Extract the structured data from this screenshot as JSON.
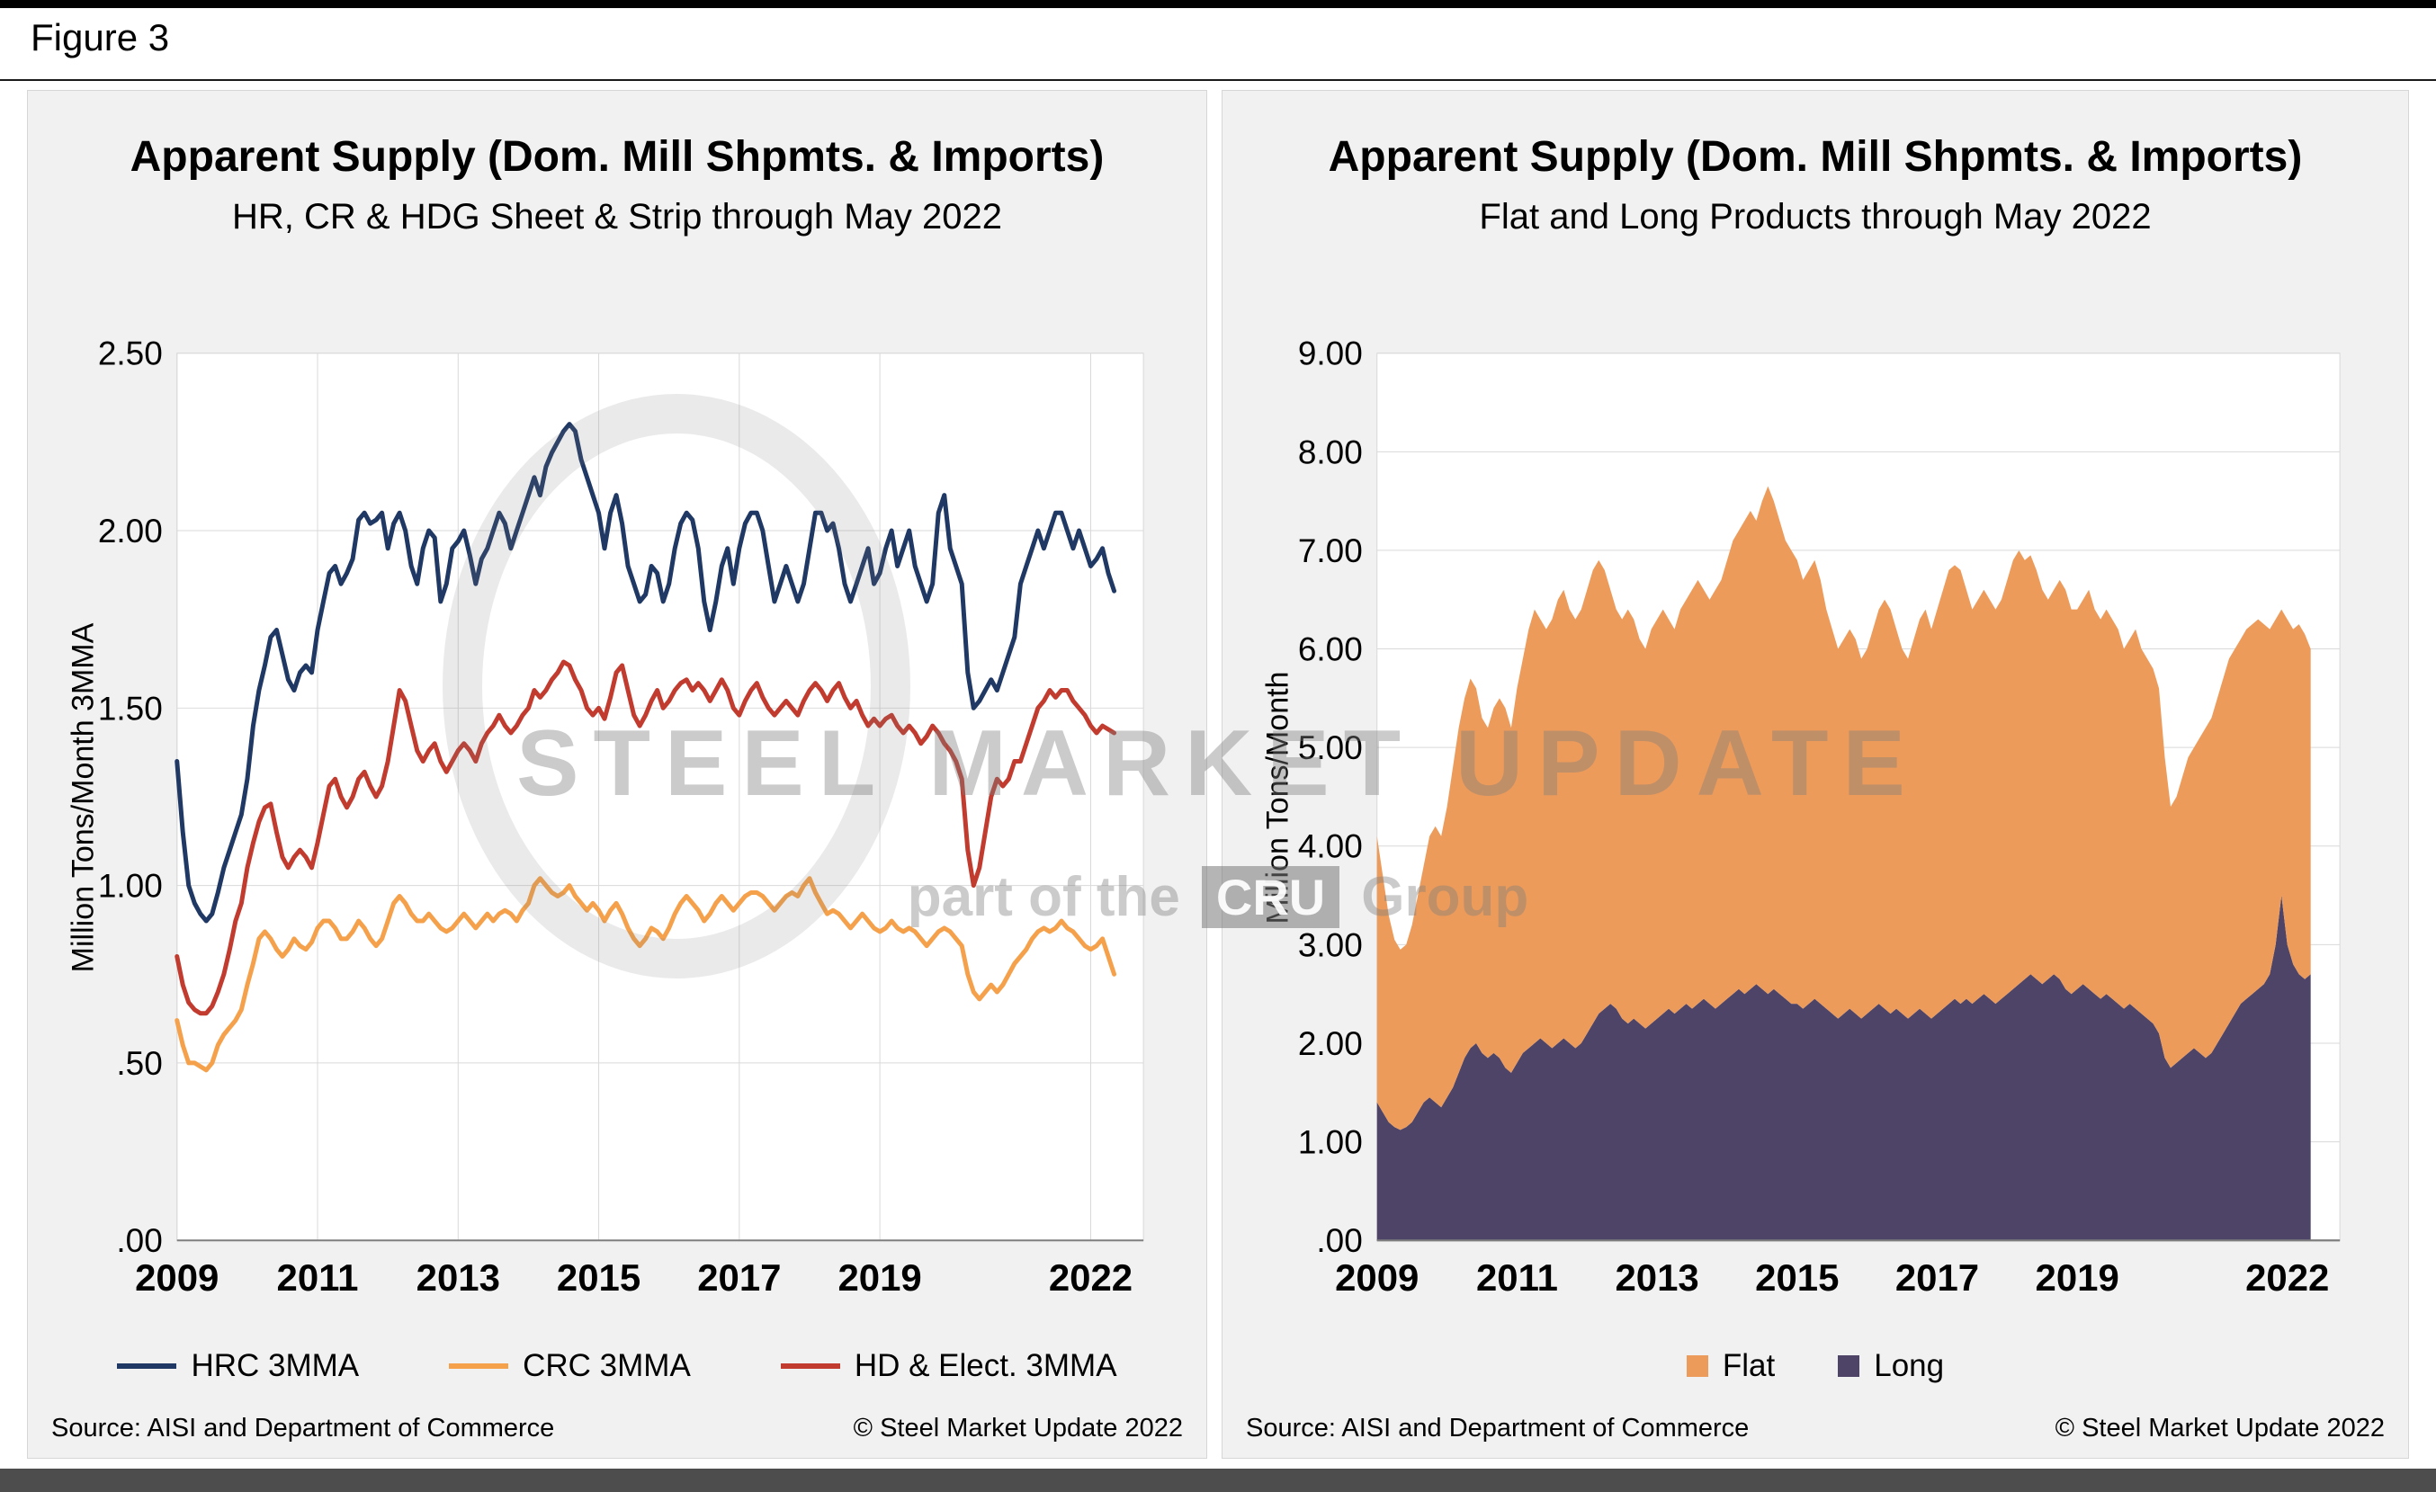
{
  "page": {
    "figure_label": "Figure 3"
  },
  "watermark": {
    "line1": "STEEL MARKET UPDATE",
    "line2_prefix": "part of the",
    "line2_logo": "CRU",
    "line2_suffix": "Group"
  },
  "chart_data": [
    {
      "type": "line",
      "title": "Apparent Supply (Dom. Mill Shpmts. & Imports)",
      "subtitle": "HR, CR & HDG Sheet & Strip through May 2022",
      "ylabel": "Million Tons/Month 3MMA",
      "source": "Source: AISI and Department of Commerce",
      "copyright": "© Steel Market Update 2022",
      "x_start_year": 2009,
      "x_step_years": 0.0833333,
      "x_end_label": "May 2022",
      "xlim": [
        2009,
        2022.75
      ],
      "ylim": [
        0,
        2.5
      ],
      "grid": "both",
      "legend_position": "bottom",
      "yticks": [
        {
          "v": 2.5,
          "label": "2.50"
        },
        {
          "v": 2.0,
          "label": "2.00"
        },
        {
          "v": 1.5,
          "label": "1.50"
        },
        {
          "v": 1.0,
          "label": "1.00"
        },
        {
          "v": 0.5,
          "label": ".50"
        },
        {
          "v": 0.0,
          "label": ".00"
        }
      ],
      "xticks": [
        {
          "v": 2009,
          "label": "2009"
        },
        {
          "v": 2011,
          "label": "2011"
        },
        {
          "v": 2013,
          "label": "2013"
        },
        {
          "v": 2015,
          "label": "2015"
        },
        {
          "v": 2017,
          "label": "2017"
        },
        {
          "v": 2019,
          "label": "2019"
        },
        {
          "v": 2022,
          "label": "2022"
        }
      ],
      "series": [
        {
          "name": "HRC 3MMA",
          "color": "#1F3864",
          "values": [
            1.35,
            1.15,
            1.0,
            0.95,
            0.92,
            0.9,
            0.92,
            0.98,
            1.05,
            1.1,
            1.15,
            1.2,
            1.3,
            1.45,
            1.55,
            1.62,
            1.7,
            1.72,
            1.65,
            1.58,
            1.55,
            1.6,
            1.62,
            1.6,
            1.72,
            1.8,
            1.88,
            1.9,
            1.85,
            1.88,
            1.92,
            2.03,
            2.05,
            2.02,
            2.03,
            2.05,
            1.95,
            2.02,
            2.05,
            2.0,
            1.9,
            1.85,
            1.95,
            2.0,
            1.98,
            1.8,
            1.85,
            1.95,
            1.97,
            2.0,
            1.93,
            1.85,
            1.92,
            1.95,
            2.0,
            2.05,
            2.02,
            1.95,
            2.0,
            2.05,
            2.1,
            2.15,
            2.1,
            2.18,
            2.22,
            2.25,
            2.28,
            2.3,
            2.28,
            2.2,
            2.15,
            2.1,
            2.05,
            1.95,
            2.05,
            2.1,
            2.02,
            1.9,
            1.85,
            1.8,
            1.82,
            1.9,
            1.88,
            1.8,
            1.85,
            1.95,
            2.02,
            2.05,
            2.03,
            1.95,
            1.8,
            1.72,
            1.8,
            1.9,
            1.95,
            1.85,
            1.95,
            2.02,
            2.05,
            2.05,
            2.0,
            1.9,
            1.8,
            1.85,
            1.9,
            1.85,
            1.8,
            1.85,
            1.95,
            2.05,
            2.05,
            2.0,
            2.02,
            1.95,
            1.85,
            1.8,
            1.85,
            1.9,
            1.95,
            1.85,
            1.88,
            1.95,
            2.0,
            1.9,
            1.95,
            2.0,
            1.9,
            1.85,
            1.8,
            1.85,
            2.05,
            2.1,
            1.95,
            1.9,
            1.85,
            1.6,
            1.5,
            1.52,
            1.55,
            1.58,
            1.55,
            1.6,
            1.65,
            1.7,
            1.85,
            1.9,
            1.95,
            2.0,
            1.95,
            2.0,
            2.05,
            2.05,
            2.0,
            1.95,
            2.0,
            1.95,
            1.9,
            1.92,
            1.95,
            1.88,
            1.83
          ]
        },
        {
          "name": "CRC 3MMA",
          "color": "#F5A14B",
          "values": [
            0.62,
            0.55,
            0.5,
            0.5,
            0.49,
            0.48,
            0.5,
            0.55,
            0.58,
            0.6,
            0.62,
            0.65,
            0.72,
            0.78,
            0.85,
            0.87,
            0.85,
            0.82,
            0.8,
            0.82,
            0.85,
            0.83,
            0.82,
            0.84,
            0.88,
            0.9,
            0.9,
            0.88,
            0.85,
            0.85,
            0.87,
            0.9,
            0.88,
            0.85,
            0.83,
            0.85,
            0.9,
            0.95,
            0.97,
            0.95,
            0.92,
            0.9,
            0.9,
            0.92,
            0.9,
            0.88,
            0.87,
            0.88,
            0.9,
            0.92,
            0.9,
            0.88,
            0.9,
            0.92,
            0.9,
            0.92,
            0.93,
            0.92,
            0.9,
            0.93,
            0.95,
            1.0,
            1.02,
            1.0,
            0.98,
            0.97,
            0.98,
            1.0,
            0.97,
            0.95,
            0.93,
            0.95,
            0.93,
            0.9,
            0.93,
            0.95,
            0.92,
            0.88,
            0.85,
            0.83,
            0.85,
            0.88,
            0.87,
            0.85,
            0.88,
            0.92,
            0.95,
            0.97,
            0.95,
            0.93,
            0.9,
            0.92,
            0.95,
            0.97,
            0.95,
            0.93,
            0.95,
            0.97,
            0.98,
            0.98,
            0.97,
            0.95,
            0.93,
            0.95,
            0.97,
            0.98,
            0.97,
            1.0,
            1.02,
            0.98,
            0.95,
            0.92,
            0.93,
            0.92,
            0.9,
            0.88,
            0.9,
            0.92,
            0.9,
            0.88,
            0.87,
            0.88,
            0.9,
            0.88,
            0.87,
            0.88,
            0.87,
            0.85,
            0.83,
            0.85,
            0.87,
            0.88,
            0.87,
            0.85,
            0.83,
            0.75,
            0.7,
            0.68,
            0.7,
            0.72,
            0.7,
            0.72,
            0.75,
            0.78,
            0.8,
            0.82,
            0.85,
            0.87,
            0.88,
            0.87,
            0.88,
            0.9,
            0.88,
            0.87,
            0.85,
            0.83,
            0.82,
            0.83,
            0.85,
            0.8,
            0.75
          ]
        },
        {
          "name": "HD & Elect. 3MMA",
          "color": "#C13B2F",
          "values": [
            0.8,
            0.72,
            0.67,
            0.65,
            0.64,
            0.64,
            0.66,
            0.7,
            0.75,
            0.82,
            0.9,
            0.95,
            1.05,
            1.12,
            1.18,
            1.22,
            1.23,
            1.15,
            1.08,
            1.05,
            1.08,
            1.1,
            1.08,
            1.05,
            1.12,
            1.2,
            1.28,
            1.3,
            1.25,
            1.22,
            1.25,
            1.3,
            1.32,
            1.28,
            1.25,
            1.28,
            1.35,
            1.45,
            1.55,
            1.52,
            1.45,
            1.38,
            1.35,
            1.38,
            1.4,
            1.35,
            1.32,
            1.35,
            1.38,
            1.4,
            1.38,
            1.35,
            1.4,
            1.43,
            1.45,
            1.48,
            1.45,
            1.43,
            1.45,
            1.48,
            1.5,
            1.55,
            1.53,
            1.55,
            1.58,
            1.6,
            1.63,
            1.62,
            1.58,
            1.55,
            1.5,
            1.48,
            1.5,
            1.47,
            1.53,
            1.6,
            1.62,
            1.55,
            1.48,
            1.45,
            1.48,
            1.52,
            1.55,
            1.5,
            1.52,
            1.55,
            1.57,
            1.58,
            1.55,
            1.57,
            1.55,
            1.52,
            1.55,
            1.58,
            1.55,
            1.5,
            1.48,
            1.52,
            1.55,
            1.57,
            1.53,
            1.5,
            1.48,
            1.5,
            1.52,
            1.5,
            1.48,
            1.52,
            1.55,
            1.57,
            1.55,
            1.52,
            1.55,
            1.57,
            1.53,
            1.5,
            1.52,
            1.48,
            1.45,
            1.47,
            1.45,
            1.47,
            1.48,
            1.45,
            1.43,
            1.45,
            1.43,
            1.4,
            1.42,
            1.45,
            1.43,
            1.4,
            1.38,
            1.35,
            1.3,
            1.1,
            1.0,
            1.05,
            1.15,
            1.25,
            1.3,
            1.28,
            1.3,
            1.35,
            1.35,
            1.4,
            1.45,
            1.5,
            1.52,
            1.55,
            1.53,
            1.55,
            1.55,
            1.52,
            1.5,
            1.48,
            1.45,
            1.43,
            1.45,
            1.44,
            1.43
          ]
        }
      ]
    },
    {
      "type": "area",
      "stacked": true,
      "title": "Apparent Supply (Dom. Mill Shpmts. & Imports)",
      "subtitle": "Flat and Long Products through May 2022",
      "ylabel": "Million Tons/Month",
      "source": "Source: AISI and Department of Commerce",
      "copyright": "© Steel Market Update 2022",
      "x_start_year": 2009,
      "x_step_years": 0.0833333,
      "x_end_label": "May 2022",
      "xlim": [
        2009,
        2022.75
      ],
      "ylim": [
        0,
        9
      ],
      "grid": "horizontal",
      "legend_position": "bottom",
      "legend_display_order": [
        "Flat",
        "Long"
      ],
      "yticks": [
        {
          "v": 9,
          "label": "9.00"
        },
        {
          "v": 8,
          "label": "8.00"
        },
        {
          "v": 7,
          "label": "7.00"
        },
        {
          "v": 6,
          "label": "6.00"
        },
        {
          "v": 5,
          "label": "5.00"
        },
        {
          "v": 4,
          "label": "4.00"
        },
        {
          "v": 3,
          "label": "3.00"
        },
        {
          "v": 2,
          "label": "2.00"
        },
        {
          "v": 1,
          "label": "1.00"
        },
        {
          "v": 0,
          "label": ".00"
        }
      ],
      "xticks": [
        {
          "v": 2009,
          "label": "2009"
        },
        {
          "v": 2011,
          "label": "2011"
        },
        {
          "v": 2013,
          "label": "2013"
        },
        {
          "v": 2015,
          "label": "2015"
        },
        {
          "v": 2017,
          "label": "2017"
        },
        {
          "v": 2019,
          "label": "2019"
        },
        {
          "v": 2022,
          "label": "2022"
        }
      ],
      "series": [
        {
          "name": "Long",
          "color": "#4D4468",
          "stack_layer": "bottom",
          "values": [
            1.4,
            1.3,
            1.2,
            1.15,
            1.12,
            1.15,
            1.2,
            1.3,
            1.4,
            1.45,
            1.4,
            1.35,
            1.45,
            1.55,
            1.7,
            1.85,
            1.95,
            2.0,
            1.9,
            1.85,
            1.9,
            1.85,
            1.75,
            1.7,
            1.8,
            1.9,
            1.95,
            2.0,
            2.05,
            2.0,
            1.95,
            2.0,
            2.05,
            2.0,
            1.95,
            2.0,
            2.1,
            2.2,
            2.3,
            2.35,
            2.4,
            2.35,
            2.25,
            2.2,
            2.25,
            2.2,
            2.15,
            2.2,
            2.25,
            2.3,
            2.35,
            2.3,
            2.35,
            2.4,
            2.35,
            2.4,
            2.45,
            2.4,
            2.35,
            2.4,
            2.45,
            2.5,
            2.55,
            2.5,
            2.55,
            2.6,
            2.55,
            2.5,
            2.55,
            2.5,
            2.45,
            2.4,
            2.4,
            2.35,
            2.4,
            2.45,
            2.4,
            2.35,
            2.3,
            2.25,
            2.3,
            2.35,
            2.3,
            2.25,
            2.3,
            2.35,
            2.4,
            2.35,
            2.3,
            2.35,
            2.3,
            2.25,
            2.3,
            2.35,
            2.3,
            2.25,
            2.3,
            2.35,
            2.4,
            2.45,
            2.4,
            2.45,
            2.4,
            2.45,
            2.5,
            2.45,
            2.4,
            2.45,
            2.5,
            2.55,
            2.6,
            2.65,
            2.7,
            2.65,
            2.6,
            2.65,
            2.7,
            2.65,
            2.55,
            2.5,
            2.55,
            2.6,
            2.55,
            2.5,
            2.45,
            2.5,
            2.45,
            2.4,
            2.35,
            2.4,
            2.35,
            2.3,
            2.25,
            2.2,
            2.1,
            1.85,
            1.75,
            1.8,
            1.85,
            1.9,
            1.95,
            1.9,
            1.85,
            1.9,
            2.0,
            2.1,
            2.2,
            2.3,
            2.4,
            2.45,
            2.5,
            2.55,
            2.6,
            2.7,
            3.0,
            3.5,
            3.0,
            2.8,
            2.7,
            2.65,
            2.7
          ]
        },
        {
          "name": "Flat",
          "color": "#EC9B5B",
          "stack_layer": "top",
          "values": [
            2.7,
            2.4,
            2.1,
            1.9,
            1.83,
            1.85,
            2.0,
            2.2,
            2.4,
            2.65,
            2.8,
            2.75,
            2.95,
            3.25,
            3.5,
            3.65,
            3.75,
            3.6,
            3.4,
            3.35,
            3.5,
            3.65,
            3.65,
            3.5,
            3.8,
            4.0,
            4.25,
            4.4,
            4.25,
            4.2,
            4.35,
            4.5,
            4.55,
            4.4,
            4.35,
            4.4,
            4.5,
            4.6,
            4.6,
            4.45,
            4.2,
            4.05,
            4.05,
            4.2,
            4.05,
            3.9,
            3.85,
            4.0,
            4.05,
            4.1,
            3.95,
            3.9,
            4.05,
            4.1,
            4.25,
            4.3,
            4.15,
            4.1,
            4.25,
            4.3,
            4.45,
            4.6,
            4.65,
            4.8,
            4.85,
            4.7,
            4.95,
            5.15,
            4.95,
            4.8,
            4.65,
            4.6,
            4.5,
            4.35,
            4.4,
            4.45,
            4.3,
            4.05,
            3.9,
            3.75,
            3.8,
            3.85,
            3.8,
            3.65,
            3.7,
            3.85,
            4.0,
            4.15,
            4.1,
            3.85,
            3.7,
            3.65,
            3.8,
            3.95,
            4.1,
            3.95,
            4.1,
            4.25,
            4.4,
            4.4,
            4.4,
            4.15,
            4.0,
            4.05,
            4.1,
            4.05,
            4.0,
            4.05,
            4.2,
            4.35,
            4.4,
            4.25,
            4.25,
            4.15,
            4.0,
            3.85,
            3.9,
            4.05,
            4.05,
            3.9,
            3.85,
            3.9,
            4.05,
            3.9,
            3.85,
            3.9,
            3.85,
            3.8,
            3.65,
            3.7,
            3.85,
            3.7,
            3.65,
            3.6,
            3.5,
            3.05,
            2.65,
            2.7,
            2.85,
            3.0,
            3.05,
            3.2,
            3.35,
            3.4,
            3.5,
            3.6,
            3.7,
            3.7,
            3.7,
            3.75,
            3.75,
            3.75,
            3.65,
            3.5,
            3.3,
            2.9,
            3.3,
            3.4,
            3.55,
            3.5,
            3.3
          ]
        }
      ]
    }
  ]
}
